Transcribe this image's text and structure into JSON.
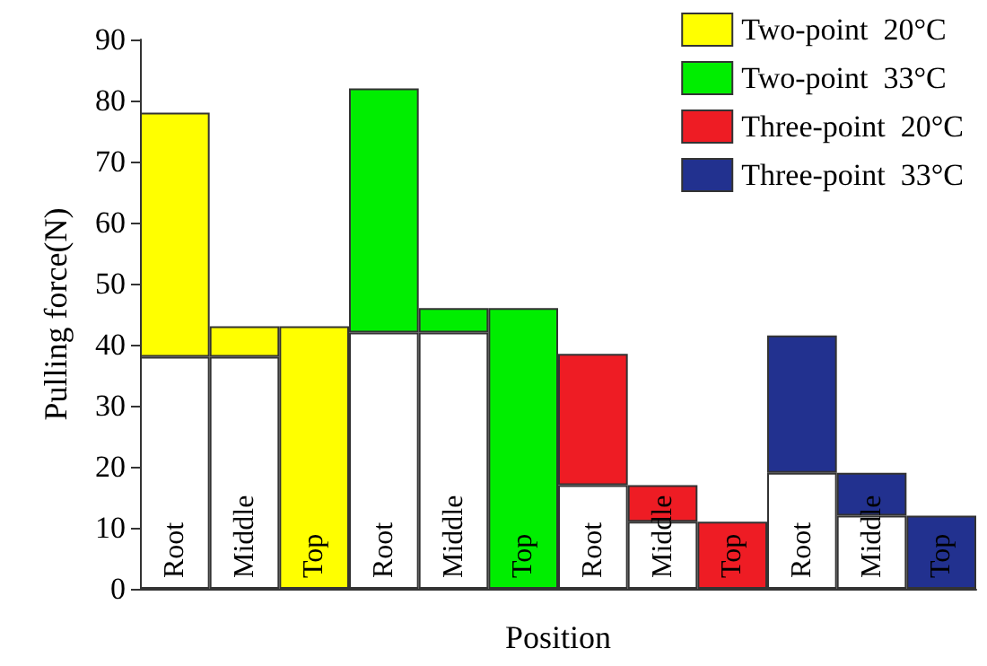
{
  "chart_data": {
    "type": "bar",
    "xlabel": "Position",
    "ylabel": "Pulling force(N)",
    "stacked": true,
    "categories": [
      "Root",
      "Middle",
      "Top",
      "Root",
      "Middle",
      "Top",
      "Root",
      "Middle",
      "Top",
      "Root",
      "Middle",
      "Top"
    ],
    "series": [
      {
        "color": "#ffffff",
        "values": [
          38,
          38,
          null,
          42,
          42,
          null,
          17,
          11,
          null,
          19,
          12,
          null
        ]
      },
      {
        "name": "Two-point  20°C",
        "color": "#ffff00",
        "values": [
          40,
          5,
          43,
          null,
          null,
          null,
          null,
          null,
          null,
          null,
          null,
          null
        ]
      },
      {
        "name": "Two-point  33°C",
        "color": "#00ee00",
        "values": [
          null,
          null,
          null,
          40,
          4,
          46,
          null,
          null,
          null,
          null,
          null,
          null
        ]
      },
      {
        "name": "Three-point  20°C",
        "color": "#ee1c24",
        "values": [
          null,
          null,
          null,
          null,
          null,
          null,
          21.5,
          6,
          11,
          null,
          null,
          null
        ]
      },
      {
        "name": "Three-point  33°C",
        "color": "#22318f",
        "values": [
          null,
          null,
          null,
          null,
          null,
          null,
          null,
          null,
          null,
          22.5,
          7,
          12
        ]
      }
    ],
    "ylim": [
      0,
      90
    ],
    "yticks": [
      0,
      10,
      20,
      30,
      40,
      50,
      60,
      70,
      80,
      90
    ],
    "grid": false,
    "legend": "top right"
  }
}
